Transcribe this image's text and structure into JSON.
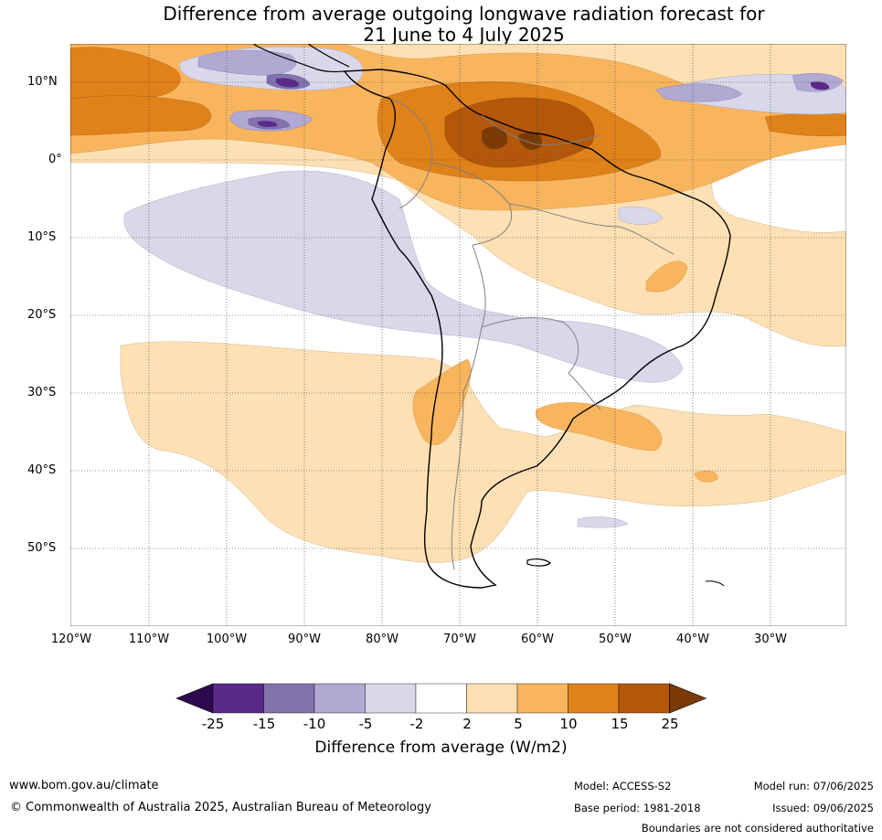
{
  "title": {
    "line1": "Difference from average outgoing longwave radiation forecast for",
    "line2": "21 June to 4 July 2025"
  },
  "map": {
    "lat_labels": [
      "10°N",
      "0°",
      "10°S",
      "20°S",
      "30°S",
      "40°S",
      "50°S"
    ],
    "lon_labels": [
      "120°W",
      "110°W",
      "100°W",
      "90°W",
      "80°W",
      "70°W",
      "60°W",
      "50°W",
      "40°W",
      "30°W"
    ],
    "extent": {
      "lon_min": -120,
      "lon_max": -20,
      "lat_min": -60,
      "lat_max": 15
    },
    "gridlines": true
  },
  "colorbar": {
    "label": "Difference from average (W/m2)",
    "ticks": [
      "-25",
      "-15",
      "-10",
      "-5",
      "-2",
      "2",
      "5",
      "10",
      "15",
      "25"
    ],
    "colors": [
      "#2d0a4e",
      "#5a2a8a",
      "#8272ad",
      "#b1a9d2",
      "#d8d8ea",
      "#ffffff",
      "#fde0b4",
      "#f9b55e",
      "#e0821a",
      "#b3580a",
      "#7a3a06"
    ]
  },
  "footer": {
    "website": "www.bom.gov.au/climate",
    "copyright": "© Commonwealth of Australia 2025, Australian Bureau of Meteorology",
    "model": "Model: ACCESS-S2",
    "base_period": "Base period: 1981-2018",
    "model_run": "Model run: 07/06/2025",
    "issued": "Issued: 09/06/2025",
    "disclaimer": "Boundaries are not considered authoritative"
  }
}
